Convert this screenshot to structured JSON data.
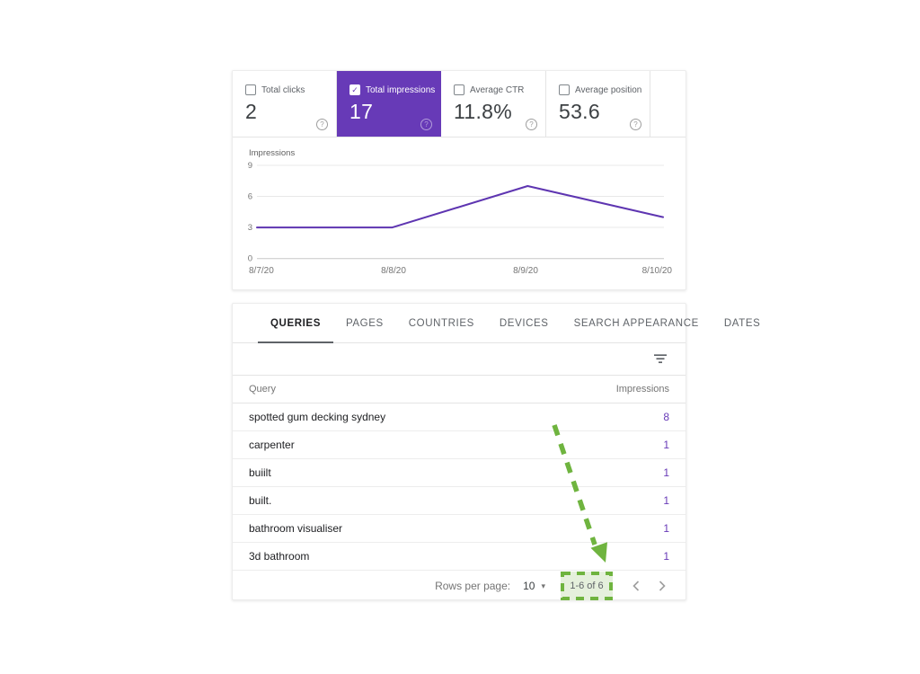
{
  "icons": {
    "check": "✓",
    "help": "?",
    "caret_down": "▾"
  },
  "metric_cards": [
    {
      "label": "Total clicks",
      "value": "2",
      "selected": false
    },
    {
      "label": "Total impressions",
      "value": "17",
      "selected": true
    },
    {
      "label": "Average CTR",
      "value": "11.8%",
      "selected": false
    },
    {
      "label": "Average position",
      "value": "53.6",
      "selected": false
    }
  ],
  "chart_data": {
    "type": "line",
    "title": "",
    "ylabel": "Impressions",
    "xlabel": "",
    "x": [
      "8/7/20",
      "8/8/20",
      "8/9/20",
      "8/10/20"
    ],
    "series": [
      {
        "name": "Total impressions",
        "values": [
          3,
          3,
          7,
          4
        ]
      }
    ],
    "yticks": [
      0,
      3,
      6,
      9
    ],
    "ylim": [
      0,
      9
    ],
    "grid": true,
    "legend_position": "none",
    "line_color": "#5e35b1"
  },
  "tabs": [
    {
      "label": "QUERIES",
      "active": true
    },
    {
      "label": "PAGES",
      "active": false
    },
    {
      "label": "COUNTRIES",
      "active": false
    },
    {
      "label": "DEVICES",
      "active": false
    },
    {
      "label": "SEARCH APPEARANCE",
      "active": false
    },
    {
      "label": "DATES",
      "active": false
    }
  ],
  "table": {
    "columns": [
      "Query",
      "Impressions"
    ],
    "rows": [
      {
        "query": "spotted gum decking sydney",
        "impressions": "8"
      },
      {
        "query": "carpenter",
        "impressions": "1"
      },
      {
        "query": "buiilt",
        "impressions": "1"
      },
      {
        "query": "built.",
        "impressions": "1"
      },
      {
        "query": "bathroom visualiser",
        "impressions": "1"
      },
      {
        "query": "3d bathroom",
        "impressions": "1"
      }
    ]
  },
  "pagination": {
    "rows_per_page_label": "Rows per page:",
    "rows_per_page_value": "10",
    "range_label": "1-6 of 6"
  },
  "colors": {
    "accent_purple": "#673ab7",
    "chart_line": "#5e35b1",
    "annotation_green": "#6fb43f",
    "annotation_fill": "#e5f0dc"
  }
}
